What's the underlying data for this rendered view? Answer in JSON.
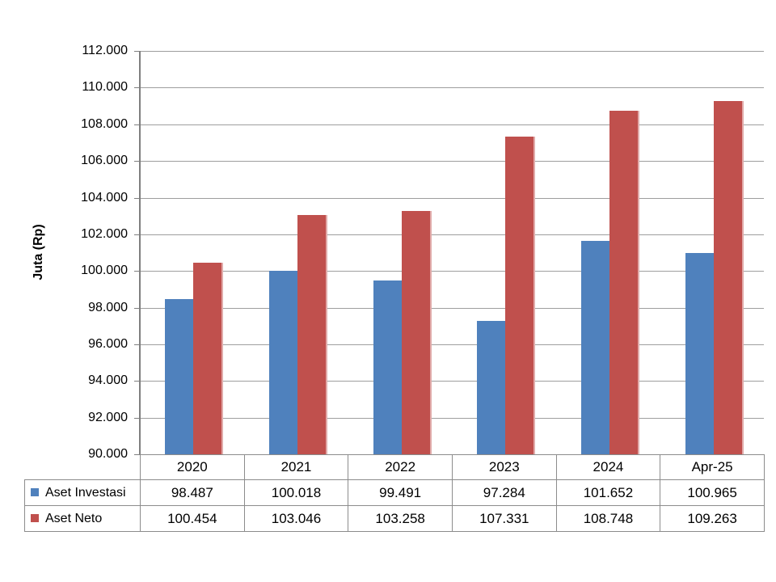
{
  "chart_data": {
    "type": "bar",
    "title": "",
    "xlabel": "",
    "ylabel": "Juta (Rp)",
    "categories": [
      "2020",
      "2021",
      "2022",
      "2023",
      "2024",
      "Apr-25"
    ],
    "series": [
      {
        "name": "Aset Investasi",
        "color": "#4F81BD",
        "edge_color": "#AEC6E3",
        "values": [
          98487,
          100018,
          99491,
          97284,
          101652,
          100965
        ],
        "labels": [
          "98.487",
          "100.018",
          "99.491",
          "97.284",
          "101.652",
          "100.965"
        ]
      },
      {
        "name": "Aset Neto",
        "color": "#C0504D",
        "edge_color": "#E1ABAA",
        "values": [
          100454,
          103046,
          103258,
          107331,
          108748,
          109263
        ],
        "labels": [
          "100.454",
          "103.046",
          "103.258",
          "107.331",
          "108.748",
          "109.263"
        ]
      }
    ],
    "ylim": [
      90000,
      112000
    ],
    "ytick_step": 2000,
    "ytick_labels": [
      "112.000",
      "110.000",
      "108.000",
      "106.000",
      "104.000",
      "102.000",
      "100.000",
      "98.000",
      "96.000",
      "94.000",
      "92.000",
      "90.000"
    ],
    "grid": true,
    "legend_position": "data-table-left-column"
  }
}
